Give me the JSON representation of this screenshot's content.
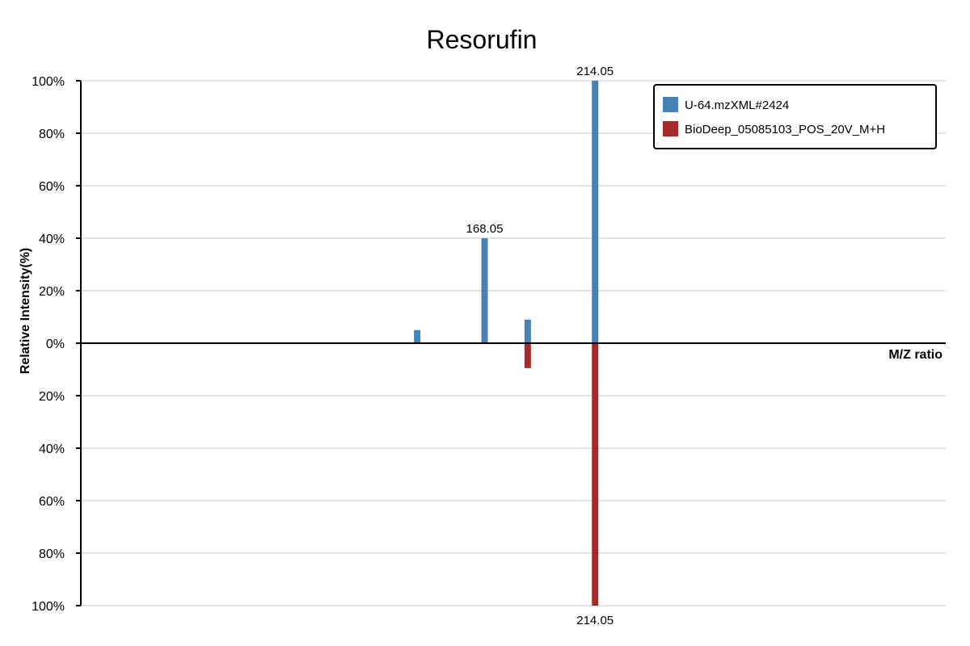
{
  "chart_data": {
    "type": "bar",
    "title": "Resorufin",
    "xlabel": "M/Z ratio",
    "ylabel": "Relative Intensity(%)",
    "yticks": [
      "100%",
      "80%",
      "60%",
      "40%",
      "20%",
      "0%",
      "20%",
      "40%",
      "60%",
      "80%",
      "100%"
    ],
    "ylim": [
      -100,
      100
    ],
    "grid": true,
    "legend_position": "top-right",
    "series": [
      {
        "name": "U-64.mzXML#2424",
        "color": "#4682b4",
        "direction": "up",
        "peaks": [
          {
            "mz": 140.0,
            "intensity": 5,
            "label": ""
          },
          {
            "mz": 168.05,
            "intensity": 40,
            "label": "168.05"
          },
          {
            "mz": 186.0,
            "intensity": 9,
            "label": ""
          },
          {
            "mz": 214.05,
            "intensity": 100,
            "label": "214.05"
          }
        ]
      },
      {
        "name": "BioDeep_05085103_POS_20V_M+H",
        "color": "#a52a2a",
        "direction": "down",
        "peaks": [
          {
            "mz": 186.0,
            "intensity": 9.5,
            "label": ""
          },
          {
            "mz": 214.05,
            "intensity": 100,
            "label": "214.05"
          }
        ]
      }
    ]
  }
}
